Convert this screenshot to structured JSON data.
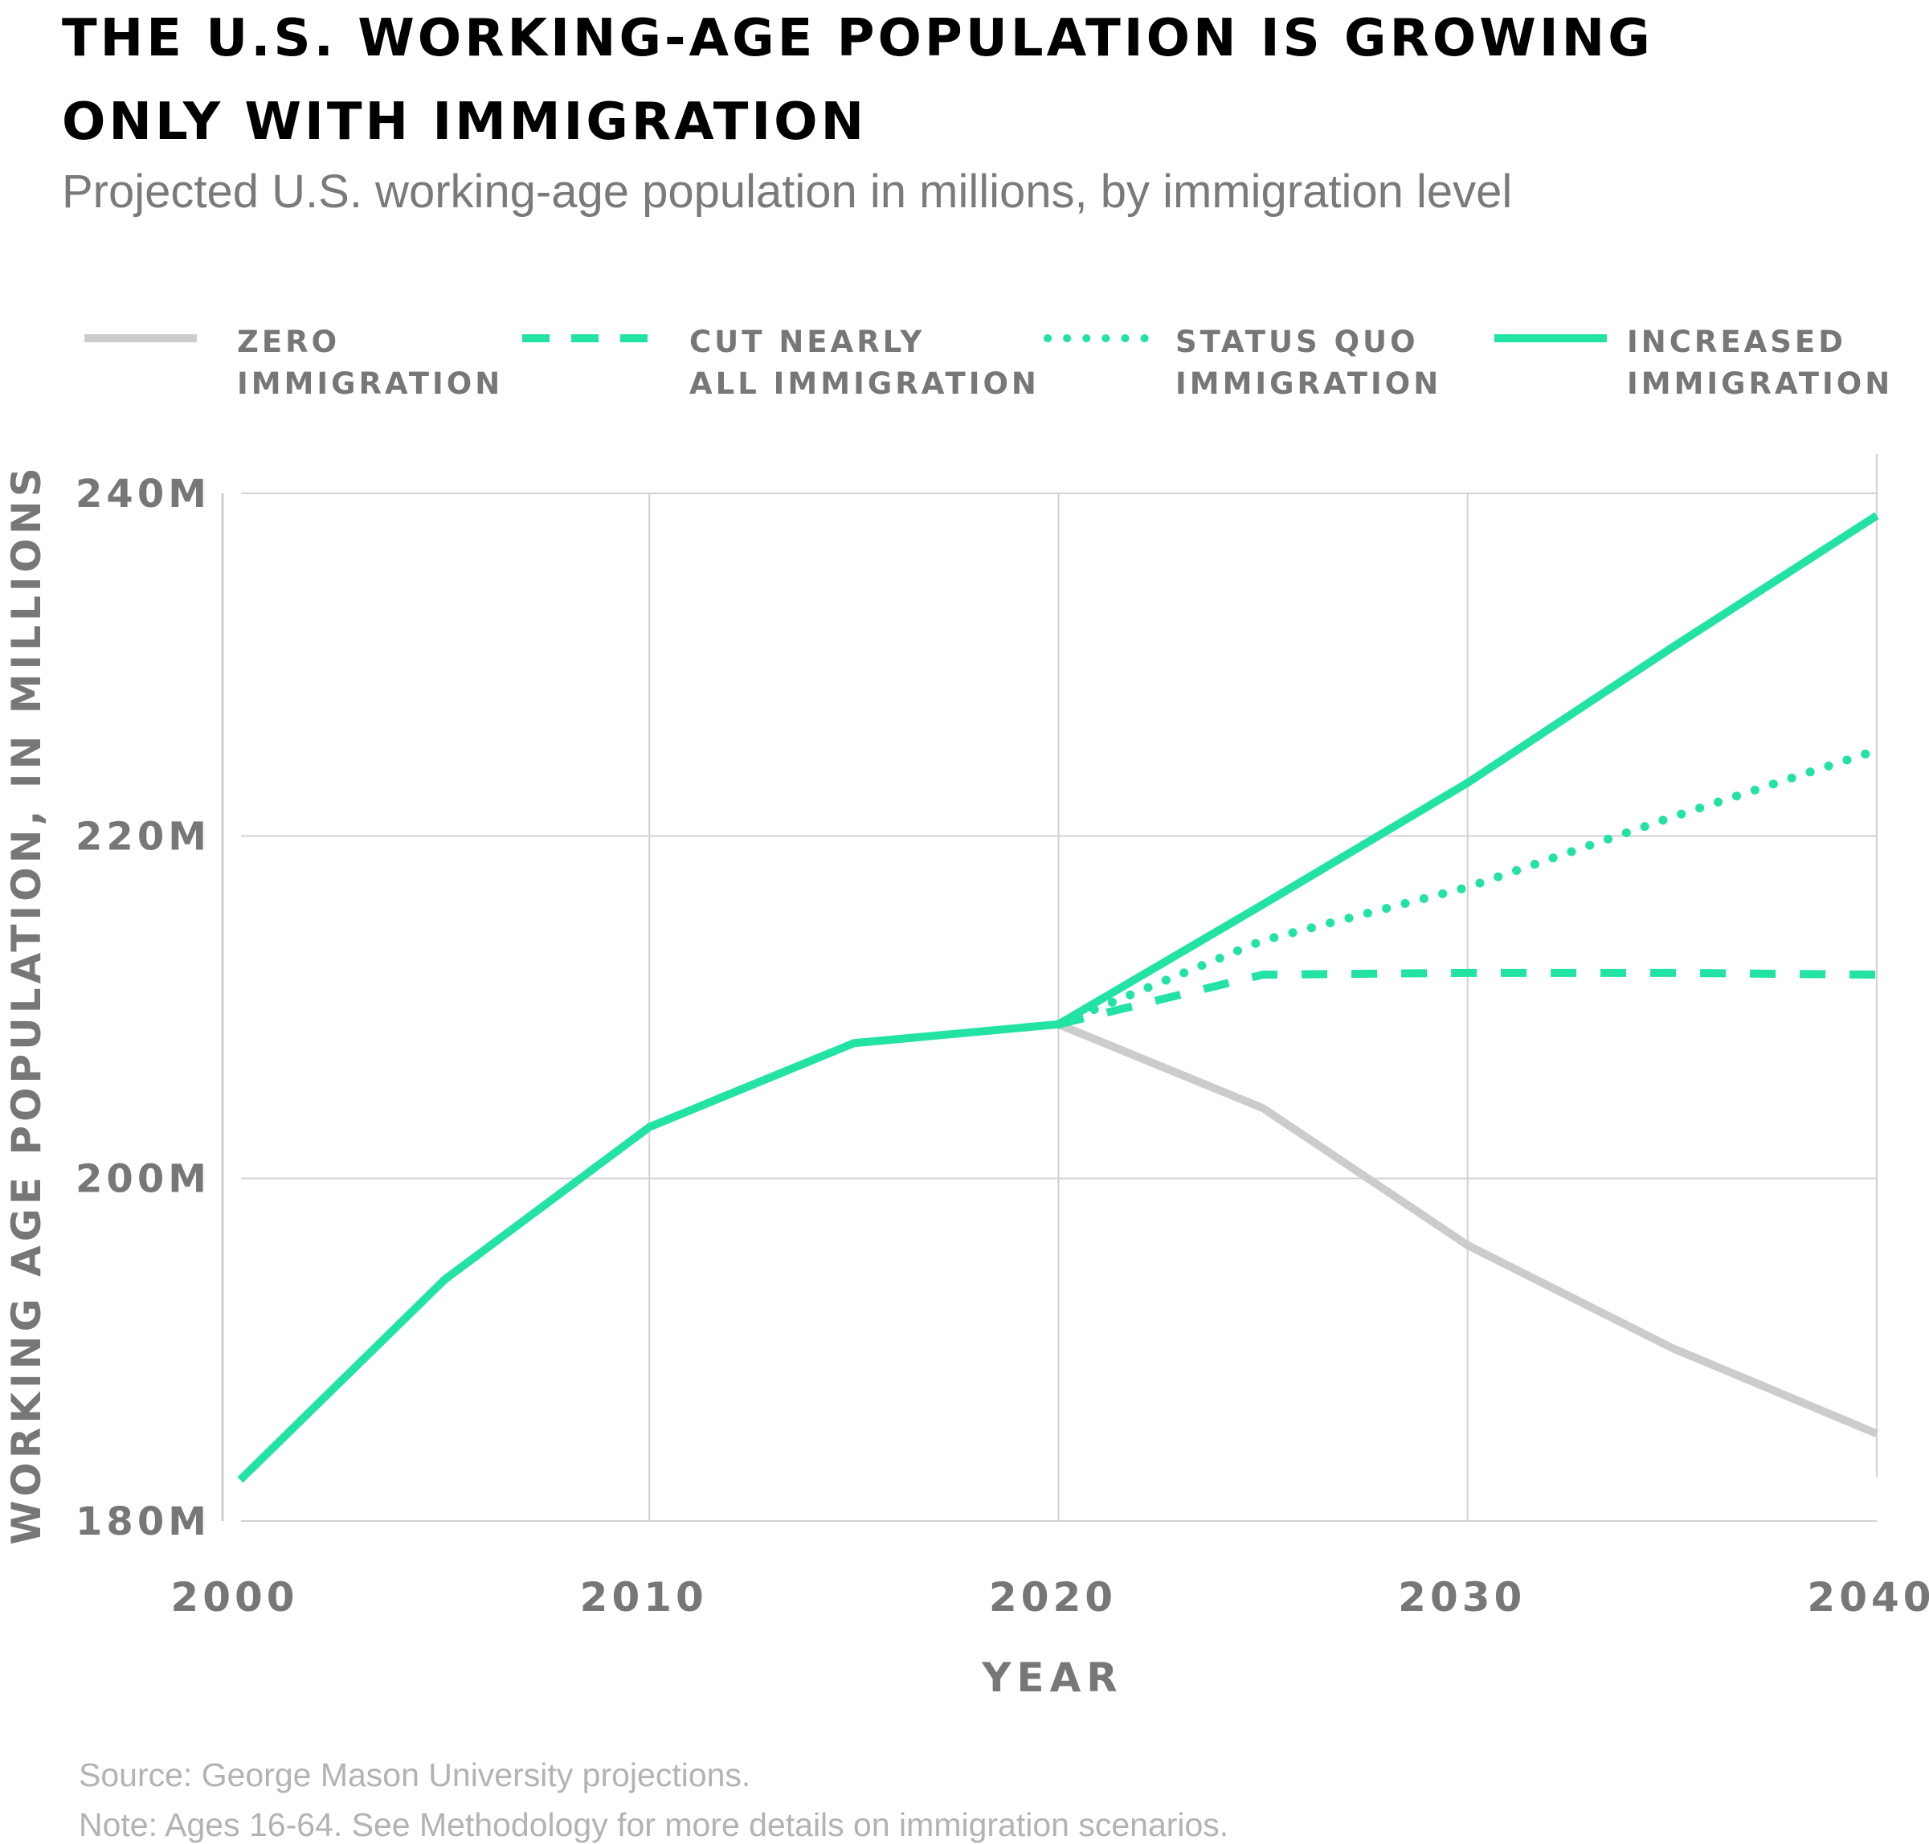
{
  "title_line1": "THE U.S. WORKING-AGE POPULATION IS GROWING",
  "title_line2": "ONLY WITH IMMIGRATION",
  "subtitle": "Projected U.S. working-age population in millions, by immigration level",
  "legend": [
    {
      "line1": "ZERO",
      "line2": "IMMIGRATION",
      "style": "solid",
      "color": "#cccccc"
    },
    {
      "line1": "CUT NEARLY",
      "line2": "ALL IMMIGRATION",
      "style": "dashed",
      "color": "#22e2a4"
    },
    {
      "line1": "STATUS QUO",
      "line2": "IMMIGRATION",
      "style": "dotted",
      "color": "#22e2a4"
    },
    {
      "line1": "INCREASED",
      "line2": "IMMIGRATION",
      "style": "solid",
      "color": "#22e2a4"
    }
  ],
  "footer": {
    "source": "Source: George Mason University projections.",
    "note": "Note: Ages 16-64. See Methodology for more details on immigration scenarios."
  },
  "chart_data": {
    "type": "line",
    "title": "THE U.S. WORKING-AGE POPULATION IS GROWING ONLY WITH IMMIGRATION",
    "subtitle": "Projected U.S. working-age population in millions, by immigration level",
    "xlabel": "YEAR",
    "ylabel": "WORKING AGE POPULATION, IN MILLIONS",
    "xlim": [
      2000,
      2040
    ],
    "ylim": [
      180,
      240
    ],
    "xticks": [
      2000,
      2010,
      2020,
      2030,
      2040
    ],
    "xtick_labels": [
      "2000",
      "2010",
      "2020",
      "2030",
      "2040"
    ],
    "yticks": [
      180,
      200,
      220,
      240
    ],
    "ytick_labels": [
      "180M",
      "200M",
      "220M",
      "240M"
    ],
    "grid": true,
    "legend_position": "top",
    "series": [
      {
        "name": "Historical",
        "style": "solid",
        "color": "#22e2a4",
        "x": [
          2000,
          2005,
          2010,
          2015,
          2020
        ],
        "values": [
          182.4,
          194.1,
          203.0,
          207.9,
          209.0
        ]
      },
      {
        "name": "Zero immigration",
        "style": "solid",
        "color": "#cccccc",
        "x": [
          2020,
          2025,
          2030,
          2035,
          2040
        ],
        "values": [
          209.0,
          204.1,
          196.1,
          190.1,
          185.1
        ]
      },
      {
        "name": "Cut nearly all immigration",
        "style": "dashed",
        "color": "#22e2a4",
        "x": [
          2020,
          2025,
          2030,
          2035,
          2040
        ],
        "values": [
          209.0,
          211.9,
          212.0,
          212.0,
          211.9
        ]
      },
      {
        "name": "Status quo immigration",
        "style": "dotted",
        "color": "#22e2a4",
        "x": [
          2020,
          2025,
          2030,
          2035,
          2040
        ],
        "values": [
          209.0,
          213.9,
          217.0,
          221.1,
          225.0
        ]
      },
      {
        "name": "Increased immigration",
        "style": "solid",
        "color": "#22e2a4",
        "x": [
          2020,
          2025,
          2030,
          2035,
          2040
        ],
        "values": [
          209.0,
          216.0,
          223.1,
          231.0,
          238.7
        ]
      }
    ]
  }
}
